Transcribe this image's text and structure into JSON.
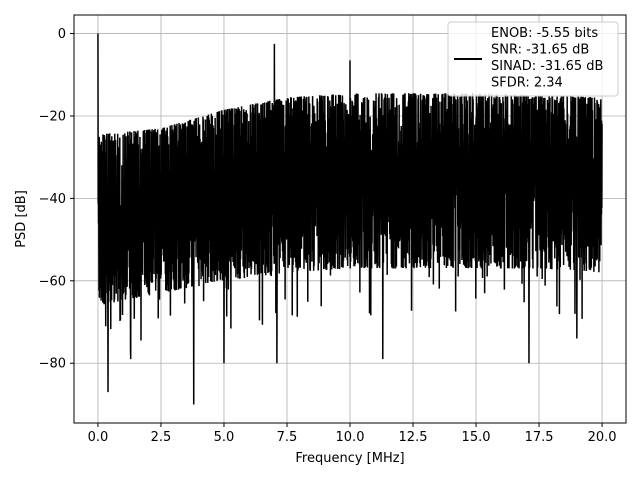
{
  "chart_data": {
    "type": "line",
    "title": "",
    "xlabel": "Frequency [MHz]",
    "ylabel": "PSD [dB]",
    "xlim": [
      -0.95,
      20.95
    ],
    "ylim": [
      -94.5,
      4.5
    ],
    "xticks": [
      0.0,
      2.5,
      5.0,
      7.5,
      10.0,
      12.5,
      15.0,
      17.5,
      20.0
    ],
    "xtick_labels": [
      "0.0",
      "2.5",
      "5.0",
      "7.5",
      "10.0",
      "12.5",
      "15.0",
      "17.5",
      "20.0"
    ],
    "yticks": [
      0,
      -20,
      -40,
      -60,
      -80
    ],
    "ytick_labels": [
      "0",
      "−20",
      "−40",
      "−60",
      "−80"
    ],
    "grid": true,
    "legend_position": "top-right",
    "legend_lines": [
      "ENOB: -5.55 bits",
      "SNR: -31.65 dB",
      "SINAD: -31.65 dB",
      "SFDR: 2.34"
    ],
    "line_color": "#000000",
    "peaks": [
      {
        "x": 0.0,
        "y": 0.0
      },
      {
        "x": 7.0,
        "y": -2.5
      },
      {
        "x": 10.0,
        "y": -6.5
      }
    ],
    "notable_dips": [
      {
        "x": 0.4,
        "y": -87
      },
      {
        "x": 1.3,
        "y": -79
      },
      {
        "x": 3.8,
        "y": -90
      },
      {
        "x": 5.0,
        "y": -80
      },
      {
        "x": 7.1,
        "y": -80
      },
      {
        "x": 11.3,
        "y": -79
      },
      {
        "x": 17.1,
        "y": -80
      },
      {
        "x": 19.0,
        "y": -74
      }
    ],
    "upper_envelope": [
      {
        "x": 0.0,
        "y": -24.5
      },
      {
        "x": 2.5,
        "y": -23
      },
      {
        "x": 5.0,
        "y": -18.5
      },
      {
        "x": 7.5,
        "y": -15.5
      },
      {
        "x": 10.0,
        "y": -14.5
      },
      {
        "x": 12.5,
        "y": -14.5
      },
      {
        "x": 15.0,
        "y": -14.5
      },
      {
        "x": 17.5,
        "y": -15
      },
      {
        "x": 20.0,
        "y": -15.5
      }
    ],
    "lower_envelope": [
      {
        "x": 0.0,
        "y": -66
      },
      {
        "x": 2.5,
        "y": -63
      },
      {
        "x": 5.0,
        "y": -60
      },
      {
        "x": 7.5,
        "y": -58
      },
      {
        "x": 10.0,
        "y": -57
      },
      {
        "x": 12.5,
        "y": -57
      },
      {
        "x": 15.0,
        "y": -57
      },
      {
        "x": 17.5,
        "y": -57
      },
      {
        "x": 20.0,
        "y": -58
      }
    ]
  }
}
